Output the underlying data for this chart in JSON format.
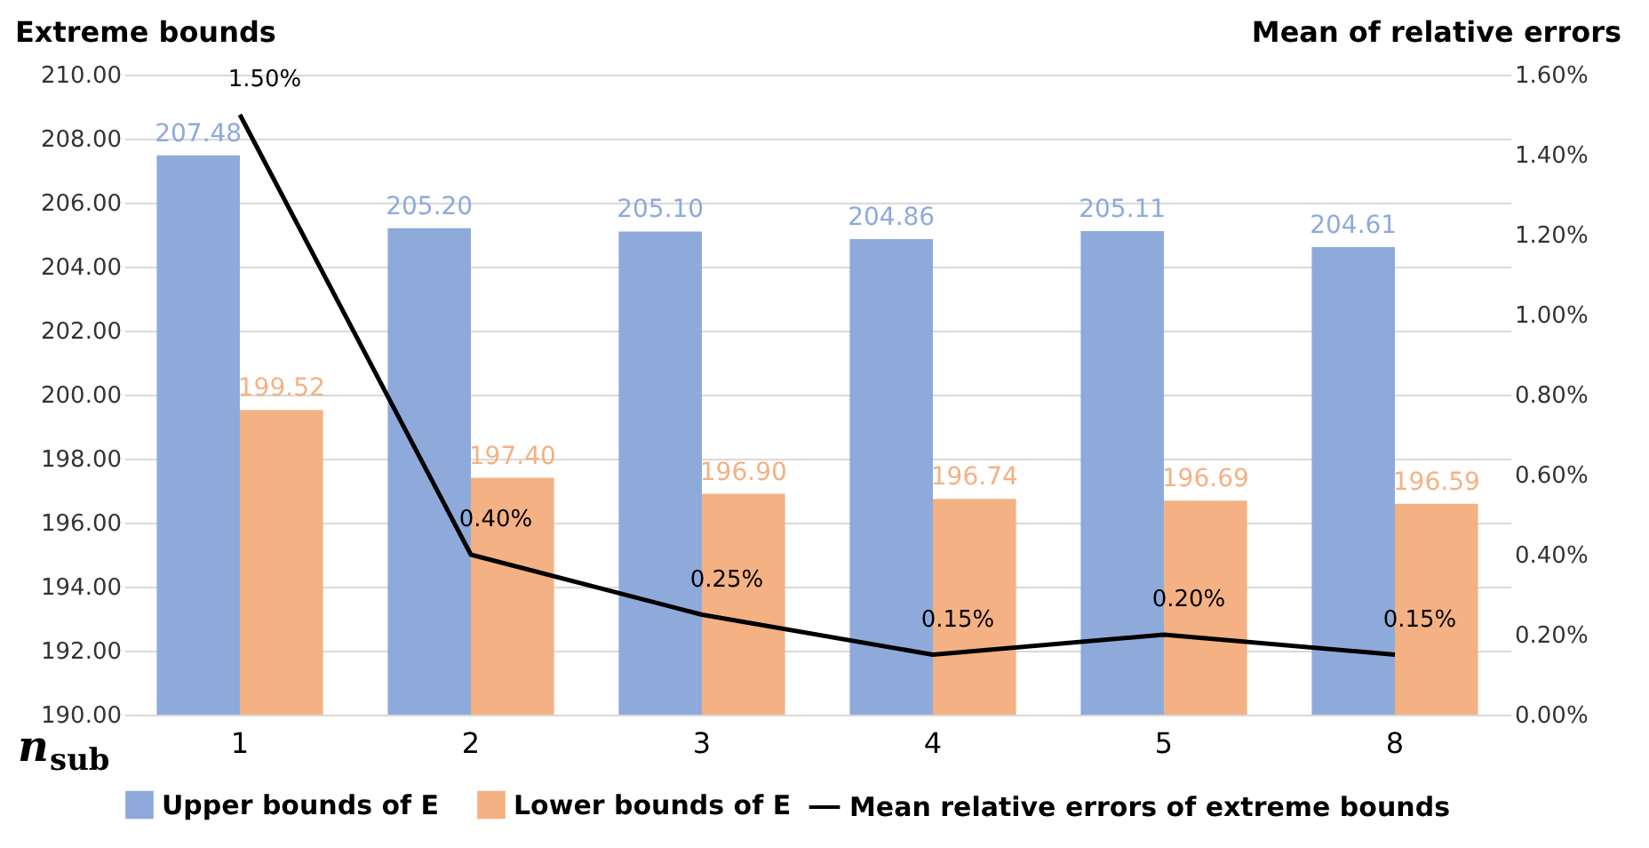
{
  "chart_data": {
    "type": "bar",
    "xlabel": "n$_{sub}$",
    "ylabel": "Extreme bounds",
    "y2label": "Mean of relative errors",
    "categories": [
      "1",
      "2",
      "3",
      "4",
      "5",
      "8"
    ],
    "series": [
      {
        "name": "Upper bounds of E",
        "type": "bar",
        "color": "#8eaadb",
        "values": [
          207.48,
          205.2,
          205.1,
          204.86,
          205.11,
          204.61
        ],
        "value_labels": [
          "207.48",
          "205.20",
          "205.10",
          "204.86",
          "205.11",
          "204.61"
        ]
      },
      {
        "name": "Lower bounds of E",
        "type": "bar",
        "color": "#f4b183",
        "values": [
          199.52,
          197.4,
          196.9,
          196.74,
          196.69,
          196.59
        ],
        "value_labels": [
          "199.52",
          "197.40",
          "196.90",
          "196.74",
          "196.69",
          "196.59"
        ]
      },
      {
        "name": "Mean relative errors of extreme bounds",
        "type": "line",
        "axis": "y2",
        "color": "#000000",
        "values": [
          1.5,
          0.4,
          0.25,
          0.15,
          0.2,
          0.15
        ],
        "value_labels": [
          "1.50%",
          "0.40%",
          "0.25%",
          "0.15%",
          "0.20%",
          "0.15%"
        ]
      }
    ],
    "ylim": [
      190,
      210
    ],
    "yticks": [
      {
        "value": 190,
        "label": "190.00"
      },
      {
        "value": 192,
        "label": "192.00"
      },
      {
        "value": 194,
        "label": "194.00"
      },
      {
        "value": 196,
        "label": "196.00"
      },
      {
        "value": 198,
        "label": "198.00"
      },
      {
        "value": 200,
        "label": "200.00"
      },
      {
        "value": 202,
        "label": "202.00"
      },
      {
        "value": 204,
        "label": "204.00"
      },
      {
        "value": 206,
        "label": "206.00"
      },
      {
        "value": 208,
        "label": "208.00"
      },
      {
        "value": 210,
        "label": "210.00"
      }
    ],
    "y2lim": [
      0,
      1.6
    ],
    "y2ticks": [
      {
        "value": 0,
        "label": "0.00%"
      },
      {
        "value": 0.2,
        "label": "0.20%"
      },
      {
        "value": 0.4,
        "label": "0.40%"
      },
      {
        "value": 0.6,
        "label": "0.60%"
      },
      {
        "value": 0.8,
        "label": "0.80%"
      },
      {
        "value": 1.0,
        "label": "1.00%"
      },
      {
        "value": 1.2,
        "label": "1.20%"
      },
      {
        "value": 1.4,
        "label": "1.40%"
      },
      {
        "value": 1.6,
        "label": "1.60%"
      }
    ],
    "grid": "y",
    "legend": "bottom",
    "marker": "none",
    "line_style": "solid"
  }
}
